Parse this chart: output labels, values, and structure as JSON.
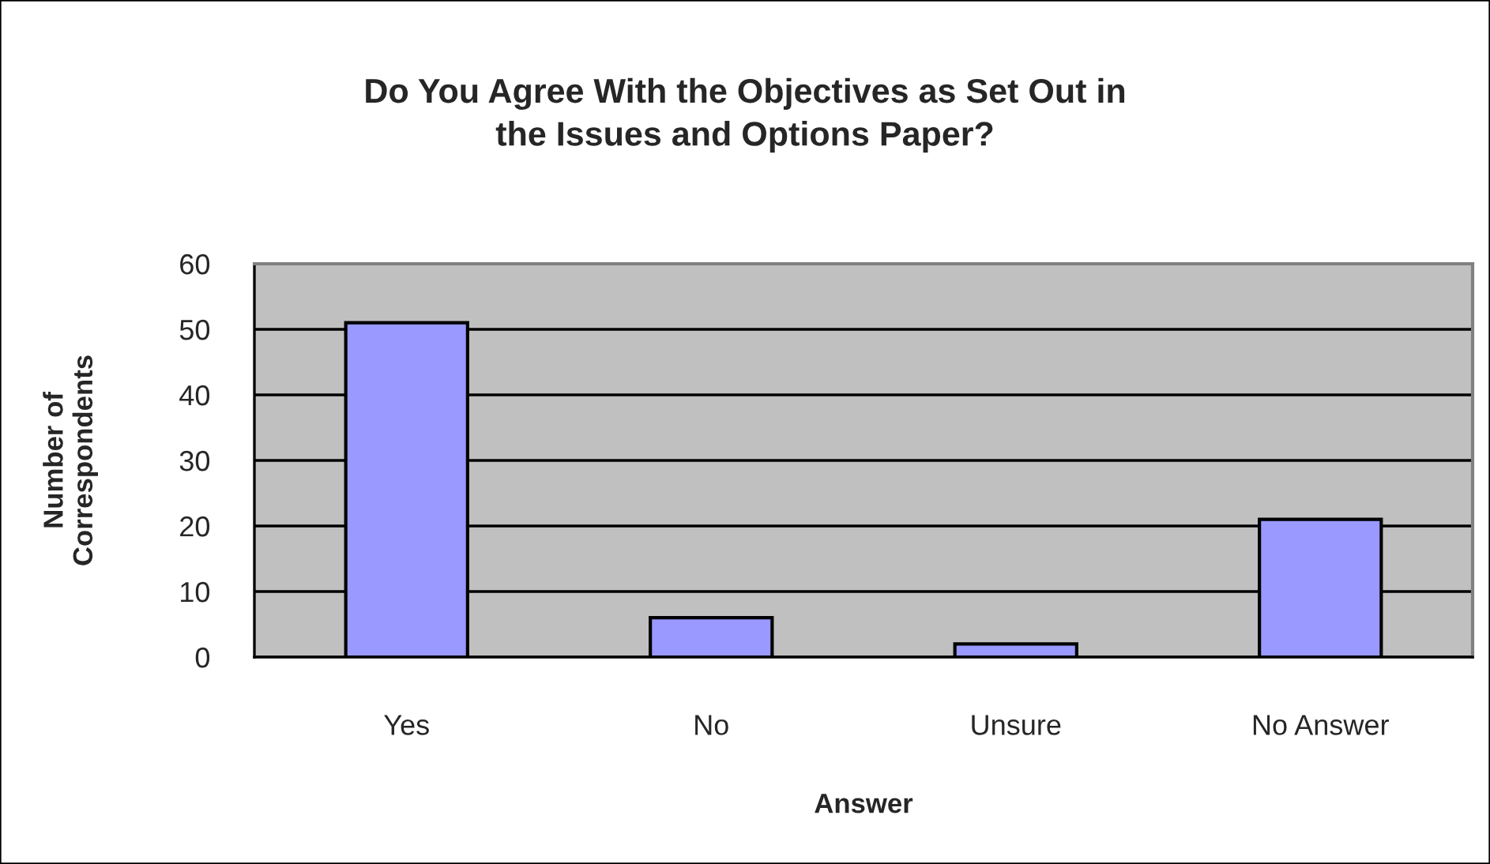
{
  "chart_data": {
    "type": "bar",
    "title": "Do You Agree With the Objectives as Set Out in\nthe Issues and Options Paper?",
    "xlabel": "Answer",
    "ylabel": "Number of\nCorrespondents",
    "categories": [
      "Yes",
      "No",
      "Unsure",
      "No Answer"
    ],
    "values": [
      51,
      6,
      2,
      21
    ],
    "color": "#9999ff",
    "ylim": [
      0,
      60
    ],
    "yticks": [
      0,
      10,
      20,
      30,
      40,
      50,
      60
    ],
    "grid": "y"
  }
}
